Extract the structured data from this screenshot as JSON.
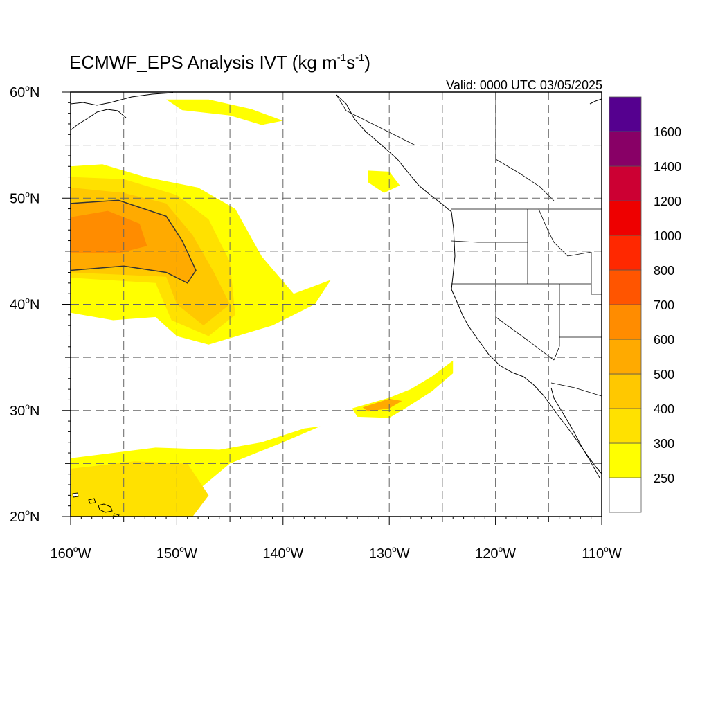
{
  "figure": {
    "title": "ECMWF_EPS Analysis IVT (kg m",
    "title_sup1": "-1",
    "title_mid": "s",
    "title_sup2": "-1",
    "title_end": ")",
    "valid": "Valid: 0000 UTC 03/05/2025"
  },
  "axes": {
    "lon_range": [
      -160,
      -110
    ],
    "lat_range": [
      20,
      60
    ],
    "lon_labels": [
      "160",
      "150",
      "140",
      "130",
      "120",
      "110"
    ],
    "lon_suffix": "W",
    "lat_labels": [
      "20",
      "30",
      "40",
      "50",
      "60"
    ],
    "lat_suffix": "N",
    "degree_symbol": "o",
    "grid": true,
    "grid_style": "dashed"
  },
  "colorbar": {
    "levels": [
      "250",
      "300",
      "400",
      "500",
      "600",
      "700",
      "800",
      "1000",
      "1200",
      "1400",
      "1600"
    ],
    "colors": [
      "#ffffff",
      "#ffff00",
      "#ffe100",
      "#ffc800",
      "#ffaa00",
      "#ff8c00",
      "#ff5500",
      "#ff2800",
      "#ee0000",
      "#cc0033",
      "#880066",
      "#55008f"
    ]
  },
  "chart_data": {
    "type": "heatmap",
    "variable": "IVT",
    "units": "kg m-1 s-1",
    "contour_level": 500,
    "features": [
      {
        "id": "north-pacific-ar",
        "polygon": [
          [
            -160,
            53
          ],
          [
            -157,
            53.2
          ],
          [
            -153,
            52
          ],
          [
            -148,
            51
          ],
          [
            -144.5,
            49
          ],
          [
            -142,
            44.5
          ],
          [
            -139,
            41
          ],
          [
            -135.5,
            42.3
          ],
          [
            -137,
            40
          ],
          [
            -141,
            38
          ],
          [
            -147,
            36.2
          ],
          [
            -150,
            37
          ],
          [
            -152,
            38.8
          ],
          [
            -156,
            38.5
          ],
          [
            -160,
            39.2
          ]
        ],
        "level_index": 1
      },
      {
        "id": "ar-core-300",
        "polygon": [
          [
            -160,
            52
          ],
          [
            -155,
            51.8
          ],
          [
            -150,
            50.3
          ],
          [
            -147,
            48
          ],
          [
            -145,
            44
          ],
          [
            -144.5,
            39
          ],
          [
            -147,
            37
          ],
          [
            -150.5,
            38.5
          ],
          [
            -152,
            42
          ],
          [
            -160,
            42.5
          ]
        ],
        "level_index": 2
      },
      {
        "id": "ar-core-400",
        "polygon": [
          [
            -160,
            51
          ],
          [
            -155,
            50.5
          ],
          [
            -151,
            49.5
          ],
          [
            -148.5,
            46.5
          ],
          [
            -146.5,
            43
          ],
          [
            -145,
            40
          ],
          [
            -147.5,
            38
          ],
          [
            -150,
            40
          ],
          [
            -151,
            42.6
          ],
          [
            -160,
            43
          ]
        ],
        "level_index": 3
      },
      {
        "id": "ar-core-500",
        "polygon": [
          [
            -160,
            49.5
          ],
          [
            -155.5,
            49.8
          ],
          [
            -151,
            48.3
          ],
          [
            -149.5,
            46
          ],
          [
            -148.2,
            43.2
          ],
          [
            -149,
            42
          ],
          [
            -151,
            43
          ],
          [
            -155,
            43.6
          ],
          [
            -160,
            43.2
          ]
        ],
        "level_index": 4
      },
      {
        "id": "ar-core-600",
        "polygon": [
          [
            -160,
            48.2
          ],
          [
            -156.5,
            48.8
          ],
          [
            -153.5,
            47.6
          ],
          [
            -152.8,
            45.5
          ],
          [
            -155.5,
            44.8
          ],
          [
            -160,
            44.8
          ]
        ],
        "level_index": 5
      },
      {
        "id": "subtropical-band-north",
        "polygon": [
          [
            -160,
            25.5
          ],
          [
            -152,
            26.5
          ],
          [
            -146,
            26.3
          ],
          [
            -142,
            27
          ],
          [
            -138,
            28.3
          ],
          [
            -136.5,
            28.5
          ],
          [
            -140,
            27
          ],
          [
            -145,
            25
          ],
          [
            -148,
            22.5
          ],
          [
            -149,
            20
          ],
          [
            -160,
            20
          ]
        ],
        "level_index": 1
      },
      {
        "id": "subtropical-band-core",
        "polygon": [
          [
            -160,
            24.5
          ],
          [
            -154,
            25.2
          ],
          [
            -149,
            25
          ],
          [
            -147,
            22
          ],
          [
            -148.5,
            20
          ],
          [
            -160,
            20
          ]
        ],
        "level_index": 2
      },
      {
        "id": "offshore-plume",
        "polygon": [
          [
            -133.5,
            30.2
          ],
          [
            -130,
            31.2
          ],
          [
            -128,
            32
          ],
          [
            -126,
            33.2
          ],
          [
            -124,
            34.7
          ],
          [
            -124,
            33.5
          ],
          [
            -126,
            31.8
          ],
          [
            -128.5,
            30.2
          ],
          [
            -130,
            29.3
          ],
          [
            -133,
            29.4
          ]
        ],
        "level_index": 1
      },
      {
        "id": "offshore-plume-core",
        "polygon": [
          [
            -132.5,
            30.3
          ],
          [
            -130,
            31.1
          ],
          [
            -128.8,
            30.9
          ],
          [
            -130,
            30.2
          ],
          [
            -132,
            29.9
          ]
        ],
        "level_index": 4
      },
      {
        "id": "gulf-of-alaska-patch",
        "polygon": [
          [
            -151,
            59.3
          ],
          [
            -147,
            59.3
          ],
          [
            -143,
            58.4
          ],
          [
            -140,
            57.3
          ],
          [
            -142,
            56.9
          ],
          [
            -145,
            57.8
          ],
          [
            -149.5,
            58.3
          ]
        ],
        "level_index": 1
      },
      {
        "id": "vancouver-island-patch",
        "polygon": [
          [
            -132,
            52.6
          ],
          [
            -130,
            52.5
          ],
          [
            -129,
            51.2
          ],
          [
            -130.5,
            50.5
          ],
          [
            -132,
            51.5
          ]
        ],
        "level_index": 1
      }
    ]
  }
}
